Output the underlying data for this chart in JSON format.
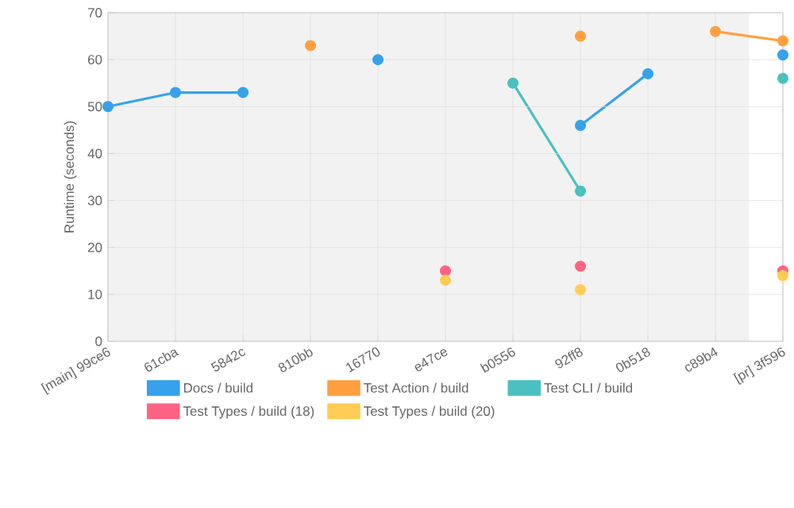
{
  "chart_data": {
    "type": "line",
    "ylabel": "Runtime (seconds)",
    "categories": [
      "[main] 99ce6",
      "61cba",
      "5842c",
      "810bb",
      "16770",
      "e47ce",
      "b0556",
      "92ff8",
      "0b518",
      "c89b4",
      "[pr] 3f596"
    ],
    "series": [
      {
        "name": "Docs / build",
        "color": "#36a2eb",
        "values": [
          50,
          53,
          53,
          null,
          60,
          null,
          null,
          46,
          57,
          null,
          61
        ]
      },
      {
        "name": "Test Action / build",
        "color": "#ff9f40",
        "values": [
          null,
          null,
          null,
          63,
          null,
          null,
          null,
          65,
          null,
          66,
          64
        ]
      },
      {
        "name": "Test CLI / build",
        "color": "#4bc0c0",
        "values": [
          null,
          null,
          null,
          null,
          null,
          null,
          55,
          32,
          null,
          null,
          56
        ]
      },
      {
        "name": "Test Types / build (18)",
        "type": "scatter",
        "color": "#ff6384",
        "values": [
          null,
          null,
          null,
          null,
          null,
          15,
          null,
          16,
          null,
          null,
          15
        ]
      },
      {
        "name": "Test Types / build (20)",
        "type": "scatter",
        "color": "#ffcd56",
        "values": [
          null,
          null,
          null,
          null,
          null,
          13,
          null,
          11,
          null,
          null,
          14
        ]
      }
    ],
    "ylim": [
      0,
      70
    ],
    "yticks": [
      0,
      10,
      20,
      30,
      40,
      50,
      60,
      70
    ],
    "grid": true,
    "legend": "bottom",
    "marker": "circle",
    "line_style": "solid"
  }
}
